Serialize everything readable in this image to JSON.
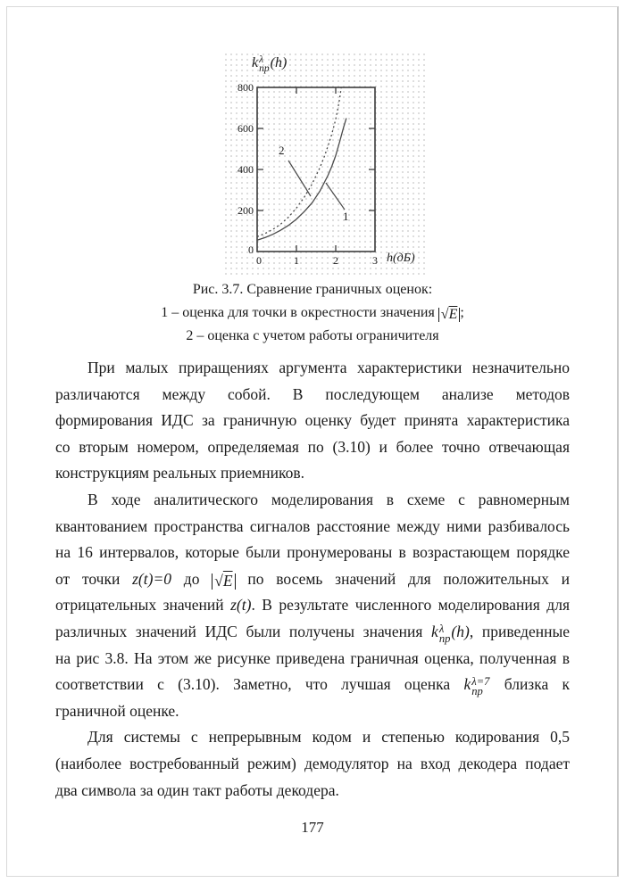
{
  "page": {
    "number": "177"
  },
  "figure": {
    "axis_title": {
      "base": "k",
      "sup": "λ",
      "sub": "np",
      "arg": "(h)"
    },
    "x_label": "h(дБ)",
    "y_ticks": [
      "800",
      "600",
      "400",
      "200",
      "0"
    ],
    "x_ticks": [
      "0",
      "1",
      "2",
      "3"
    ],
    "curve_label_1": "1",
    "curve_label_2": "2"
  },
  "caption": {
    "line1": "Рис. 3.7. Сравнение граничных оценок:",
    "line2_prefix": "1 – оценка для точки в окрестности значения ",
    "sqrt_arg": "E",
    "line2_suffix": ";",
    "line3": "2 – оценка с учетом работы ограничителя"
  },
  "paragraphs": [
    [
      [
        {
          "t": "При малых приращениях аргумента характеристики незначительно"
        }
      ],
      [
        {
          "t": "различаются между собой. В последующем анализе методов"
        }
      ],
      [
        {
          "t": "формирования ИДС за граничную оценку будет принята характеристика"
        }
      ],
      [
        {
          "t": "со вторым номером, определяемая по (3.10) и более точно отвечающая"
        }
      ],
      [
        {
          "t": "конструкциям реальных приемников."
        }
      ]
    ],
    [
      [
        {
          "t": "В ходе аналитического моделирования в схеме с равномерным"
        }
      ],
      [
        {
          "t": "квантованием пространства сигналов расстояние между ними разбивалось"
        }
      ],
      [
        {
          "t": "на 16 интервалов, которые были пронумерованы в возрастающем порядке"
        }
      ],
      [
        {
          "t": "от точки "
        },
        {
          "i": "z(t)=0"
        },
        {
          "t": " до "
        },
        {
          "abs": "E"
        },
        {
          "t": " по восемь значений для положительных и"
        }
      ],
      [
        {
          "t": "отрицательных значений "
        },
        {
          "i": "z(t)"
        },
        {
          "t": ". В результате численного моделирования для"
        }
      ],
      [
        {
          "t": "различных значений ИДС были получены значения "
        },
        {
          "knp": {
            "sup": "λ",
            "sub": "np",
            "arg": "(h)"
          }
        },
        {
          "t": ", приведенные"
        }
      ],
      [
        {
          "t": "на рис 3.8. На этом же рисунке приведена граничная оценка, полученная в"
        }
      ],
      [
        {
          "t": "соответствии с (3.10). Заметно, что лучшая оценка "
        },
        {
          "knp": {
            "sup": "λ=7",
            "sub": "np"
          }
        },
        {
          "t": " близка к"
        }
      ],
      [
        {
          "t": "граничной оценке."
        }
      ]
    ],
    [
      [
        {
          "t": "Для системы с непрерывным кодом и степенью кодирования 0,5"
        }
      ],
      [
        {
          "t": "(наиболее востребованный режим) демодулятор на вход декодера подает"
        }
      ],
      [
        {
          "t": "два символа за один такт работы декодера."
        }
      ]
    ]
  ],
  "chart_data": {
    "type": "line",
    "title": "k_np^λ(h) — Рис. 3.7. Сравнение граничных оценок",
    "xlabel": "h(дБ)",
    "ylabel": "k_np^λ(h)",
    "xlim": [
      0,
      3
    ],
    "ylim": [
      0,
      800
    ],
    "x_ticks": [
      0,
      1,
      2,
      3
    ],
    "y_ticks": [
      0,
      200,
      400,
      600,
      800
    ],
    "grid": false,
    "legend_position": "none",
    "series": [
      {
        "name": "1 – оценка для точки в окрестности значения |√E|",
        "style": "solid",
        "points": [
          [
            0,
            55
          ],
          [
            0.2,
            68
          ],
          [
            0.4,
            84
          ],
          [
            0.6,
            104
          ],
          [
            0.8,
            128
          ],
          [
            1.0,
            158
          ],
          [
            1.2,
            195
          ],
          [
            1.4,
            238
          ],
          [
            1.6,
            295
          ],
          [
            1.8,
            370
          ],
          [
            1.9,
            415
          ],
          [
            2.0,
            468
          ],
          [
            2.1,
            535
          ],
          [
            2.2,
            605
          ],
          [
            2.27,
            650
          ]
        ]
      },
      {
        "name": "2 – оценка с учетом работы ограничителя",
        "style": "dashed",
        "points": [
          [
            0,
            72
          ],
          [
            0.2,
            88
          ],
          [
            0.4,
            108
          ],
          [
            0.6,
            134
          ],
          [
            0.8,
            168
          ],
          [
            1.0,
            212
          ],
          [
            1.2,
            265
          ],
          [
            1.4,
            330
          ],
          [
            1.6,
            410
          ],
          [
            1.7,
            458
          ],
          [
            1.8,
            512
          ],
          [
            1.9,
            572
          ],
          [
            2.0,
            645
          ],
          [
            2.05,
            692
          ],
          [
            2.1,
            745
          ],
          [
            2.14,
            800
          ]
        ]
      }
    ]
  }
}
